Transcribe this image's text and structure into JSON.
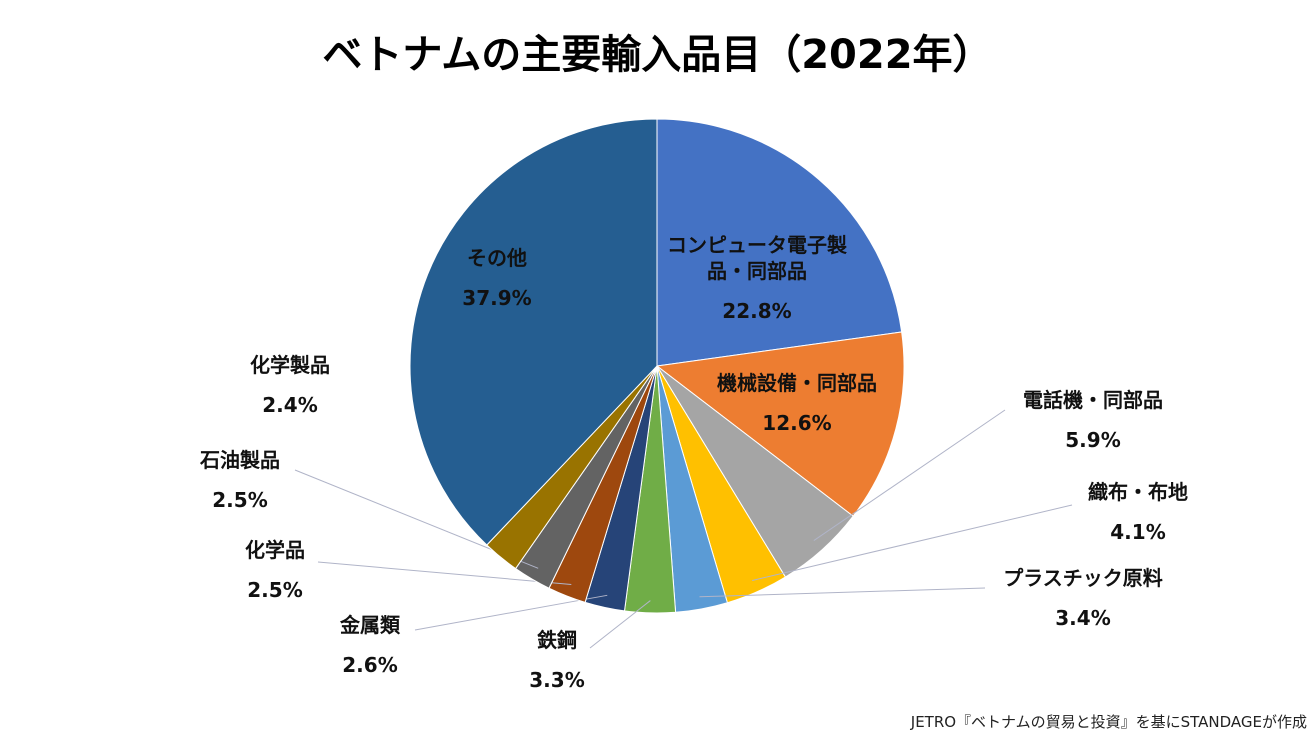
{
  "chart_data": {
    "type": "pie",
    "title": "ベトナムの主要輸入品目（2022年）",
    "categories": [
      "コンピュータ電子製品・同部品",
      "機械設備・同部品",
      "電話機・同部品",
      "織布・布地",
      "プラスチック原料",
      "鉄鋼",
      "金属類",
      "化学品",
      "石油製品",
      "化学製品",
      "その他"
    ],
    "values": [
      22.8,
      12.6,
      5.9,
      4.1,
      3.4,
      3.3,
      2.6,
      2.5,
      2.5,
      2.4,
      37.9
    ],
    "value_labels": [
      "22.8%",
      "12.6%",
      "5.9%",
      "4.1%",
      "3.4%",
      "3.3%",
      "2.6%",
      "2.5%",
      "2.5%",
      "2.4%",
      "37.9%"
    ],
    "colors": [
      "#4472c4",
      "#ed7d31",
      "#a5a5a5",
      "#ffc000",
      "#5b9bd5",
      "#70ad47",
      "#264478",
      "#9e480e",
      "#636363",
      "#997300",
      "#255e91"
    ],
    "note": "JETRO『ベトナムの貿易と投資』を基にSTANDAGEが作成"
  }
}
